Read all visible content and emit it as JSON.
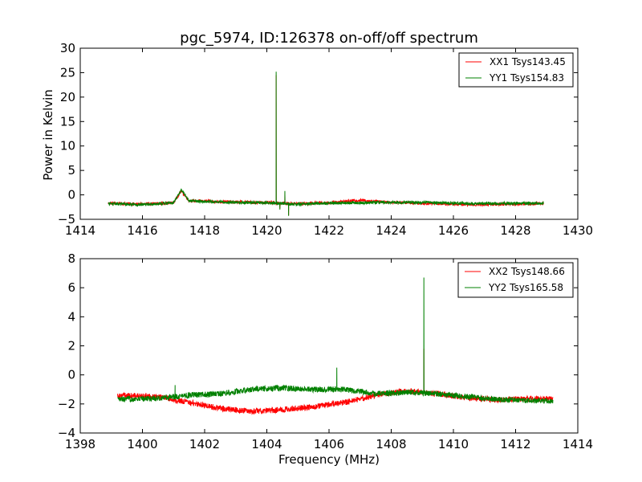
{
  "chart_data": [
    {
      "type": "line",
      "title": "pgc_5974, ID:126378 on-off/off spectrum",
      "xlabel": "",
      "ylabel": "Power in Kelvin",
      "xlim": [
        1414,
        1430
      ],
      "ylim": [
        -5,
        30
      ],
      "xticks": [
        "1414",
        "1416",
        "1418",
        "1420",
        "1422",
        "1424",
        "1426",
        "1428",
        "1430"
      ],
      "yticks": [
        "−5",
        "0",
        "5",
        "10",
        "15",
        "20",
        "25",
        "30"
      ],
      "legend_position": "top-right",
      "grid": false,
      "series": [
        {
          "name": "XX1 Tsys143.45",
          "color": "#ff0000",
          "noise": 0.3,
          "x_range": [
            1414.9,
            1428.9
          ],
          "baseline": [
            [
              1414.9,
              -1.7
            ],
            [
              1416.0,
              -1.9
            ],
            [
              1417.0,
              -1.6
            ],
            [
              1417.25,
              0.8
            ],
            [
              1417.5,
              -1.2
            ],
            [
              1418.5,
              -1.4
            ],
            [
              1420.0,
              -1.6
            ],
            [
              1421.0,
              -1.8
            ],
            [
              1422.0,
              -1.6
            ],
            [
              1423.0,
              -1.1
            ],
            [
              1424.0,
              -1.5
            ],
            [
              1425.5,
              -1.8
            ],
            [
              1426.5,
              -2.0
            ],
            [
              1428.9,
              -1.8
            ]
          ],
          "features": [
            {
              "x": 1420.3,
              "y": 24.5
            },
            {
              "x": 1420.42,
              "y": -2.8
            },
            {
              "x": 1420.58,
              "y": 0.5
            },
            {
              "x": 1420.7,
              "y": -4.2
            }
          ]
        },
        {
          "name": "YY1 Tsys154.83",
          "color": "#008000",
          "noise": 0.3,
          "x_range": [
            1414.9,
            1428.9
          ],
          "baseline": [
            [
              1414.9,
              -1.8
            ],
            [
              1416.0,
              -2.0
            ],
            [
              1417.0,
              -1.6
            ],
            [
              1417.25,
              1.0
            ],
            [
              1417.5,
              -1.2
            ],
            [
              1418.5,
              -1.5
            ],
            [
              1420.0,
              -1.6
            ],
            [
              1421.0,
              -1.9
            ],
            [
              1422.0,
              -1.7
            ],
            [
              1423.0,
              -1.6
            ],
            [
              1424.0,
              -1.5
            ],
            [
              1425.5,
              -1.6
            ],
            [
              1426.5,
              -1.8
            ],
            [
              1428.9,
              -1.7
            ]
          ],
          "features": [
            {
              "x": 1420.3,
              "y": 25.2
            },
            {
              "x": 1420.42,
              "y": -3.0
            },
            {
              "x": 1420.58,
              "y": 0.8
            },
            {
              "x": 1420.7,
              "y": -4.3
            }
          ]
        }
      ]
    },
    {
      "type": "line",
      "title": "",
      "xlabel": "Frequency (MHz)",
      "ylabel": "",
      "xlim": [
        1398,
        1414
      ],
      "ylim": [
        -4,
        8
      ],
      "xticks": [
        "1398",
        "1400",
        "1402",
        "1404",
        "1406",
        "1408",
        "1410",
        "1412",
        "1414"
      ],
      "yticks": [
        "−4",
        "−2",
        "0",
        "2",
        "4",
        "6",
        "8"
      ],
      "legend_position": "top-right",
      "grid": false,
      "series": [
        {
          "name": "XX2 Tsys148.66",
          "color": "#ff0000",
          "noise": 0.2,
          "x_range": [
            1399.2,
            1413.2
          ],
          "baseline": [
            [
              1399.2,
              -1.4
            ],
            [
              1400.5,
              -1.5
            ],
            [
              1401.5,
              -1.9
            ],
            [
              1402.5,
              -2.3
            ],
            [
              1403.5,
              -2.5
            ],
            [
              1404.5,
              -2.4
            ],
            [
              1405.5,
              -2.2
            ],
            [
              1406.5,
              -1.9
            ],
            [
              1407.5,
              -1.4
            ],
            [
              1408.5,
              -1.1
            ],
            [
              1409.5,
              -1.3
            ],
            [
              1410.5,
              -1.6
            ],
            [
              1411.5,
              -1.7
            ],
            [
              1413.2,
              -1.6
            ]
          ],
          "features": [
            {
              "x": 1409.05,
              "y": 1.8
            }
          ]
        },
        {
          "name": "YY2 Tsys165.58",
          "color": "#008000",
          "noise": 0.2,
          "x_range": [
            1399.2,
            1413.2
          ],
          "baseline": [
            [
              1399.2,
              -1.7
            ],
            [
              1400.5,
              -1.6
            ],
            [
              1401.5,
              -1.4
            ],
            [
              1402.5,
              -1.3
            ],
            [
              1403.5,
              -1.0
            ],
            [
              1404.5,
              -0.9
            ],
            [
              1405.5,
              -1.0
            ],
            [
              1406.5,
              -1.0
            ],
            [
              1407.5,
              -1.3
            ],
            [
              1408.5,
              -1.2
            ],
            [
              1409.5,
              -1.3
            ],
            [
              1410.5,
              -1.5
            ],
            [
              1411.5,
              -1.7
            ],
            [
              1413.2,
              -1.8
            ]
          ],
          "features": [
            {
              "x": 1401.05,
              "y": -0.7
            },
            {
              "x": 1406.25,
              "y": 0.5
            },
            {
              "x": 1409.05,
              "y": 6.7
            }
          ]
        }
      ]
    }
  ]
}
